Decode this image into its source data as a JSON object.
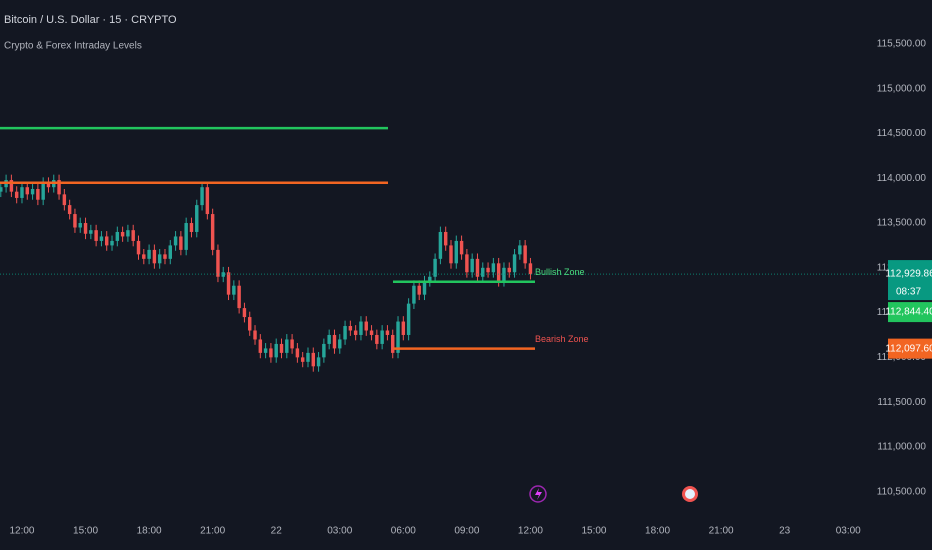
{
  "header": {
    "symbol": "Bitcoin / U.S. Dollar · 15 · CRYPTO",
    "indicator": "Crypto & Forex Intraday Levels"
  },
  "chart_data": {
    "type": "candlestick",
    "up_color": "#26a69a",
    "down_color": "#ef5350",
    "grid": false,
    "ylim": [
      110240,
      115990
    ],
    "xlim": [
      -0.15,
      166
    ],
    "yticks": [
      {
        "value": 110500,
        "label": "110,500.00"
      },
      {
        "value": 111000,
        "label": "111,000.00"
      },
      {
        "value": 111500,
        "label": "111,500.00"
      },
      {
        "value": 112000,
        "label": "112,000.00"
      },
      {
        "value": 112500,
        "label": "112,500.00"
      },
      {
        "value": 113000,
        "label": "113,000.00"
      },
      {
        "value": 113500,
        "label": "113,500.00"
      },
      {
        "value": 114000,
        "label": "114,000.00"
      },
      {
        "value": 114500,
        "label": "114,500.00"
      },
      {
        "value": 115000,
        "label": "115,000.00"
      },
      {
        "value": 115500,
        "label": "115,500.00"
      }
    ],
    "xticks": [
      {
        "value": 4,
        "label": "12:00"
      },
      {
        "value": 16,
        "label": "15:00"
      },
      {
        "value": 28,
        "label": "18:00"
      },
      {
        "value": 40,
        "label": "21:00"
      },
      {
        "value": 52,
        "label": "22"
      },
      {
        "value": 64,
        "label": "03:00"
      },
      {
        "value": 76,
        "label": "06:00"
      },
      {
        "value": 88,
        "label": "09:00"
      },
      {
        "value": 100,
        "label": "12:00"
      },
      {
        "value": 112,
        "label": "15:00"
      },
      {
        "value": 124,
        "label": "18:00"
      },
      {
        "value": 136,
        "label": "21:00"
      },
      {
        "value": 148,
        "label": "23"
      },
      {
        "value": 160,
        "label": "03:00"
      }
    ],
    "open": [
      113850,
      113900,
      113980,
      113850,
      113780,
      113900,
      113820,
      113880,
      113760,
      113950,
      113900,
      113980,
      113820,
      113700,
      113600,
      113450,
      113500,
      113380,
      113420,
      113300,
      113350,
      113250,
      113300,
      113400,
      113350,
      113420,
      113300,
      113150,
      113100,
      113200,
      113050,
      113150,
      113100,
      113250,
      113350,
      113200,
      113500,
      113400,
      113700,
      113900,
      113600,
      113200,
      112900,
      112950,
      112700,
      112800,
      112550,
      112450,
      112300,
      112200,
      112050,
      112100,
      112000,
      112150,
      112050,
      112200,
      112100,
      112000,
      111950,
      112050,
      111900,
      112000,
      112150,
      112250,
      112100,
      112200,
      112350,
      112300,
      112250,
      112400,
      112300,
      112250,
      112150,
      112300,
      112250,
      112050,
      112400,
      112250,
      112600,
      112800,
      112700,
      112850,
      112900,
      113100,
      113400,
      113250,
      113050,
      113300,
      113150,
      112950,
      113100,
      112900,
      113000,
      112950,
      113050,
      112850,
      113000,
      112950,
      113150,
      113250,
      113050
    ],
    "high": [
      113960,
      114040,
      114040,
      113910,
      113960,
      113960,
      113940,
      113940,
      114010,
      114010,
      114040,
      114040,
      113880,
      113760,
      113660,
      113560,
      113560,
      113480,
      113480,
      113410,
      113410,
      113360,
      113460,
      113460,
      113480,
      113480,
      113360,
      113210,
      113260,
      113260,
      113210,
      113210,
      113310,
      113410,
      113410,
      113560,
      113560,
      113760,
      113960,
      113960,
      113660,
      113260,
      113010,
      113010,
      112860,
      112860,
      112610,
      112510,
      112360,
      112260,
      112160,
      112160,
      112210,
      112210,
      112260,
      112260,
      112160,
      112060,
      112110,
      112110,
      112060,
      112210,
      112310,
      112310,
      112260,
      112410,
      112410,
      112360,
      112460,
      112460,
      112360,
      112310,
      112360,
      112360,
      112310,
      112460,
      112460,
      112660,
      112860,
      112860,
      112910,
      112960,
      113160,
      113460,
      113460,
      113310,
      113360,
      113360,
      113210,
      113160,
      113160,
      113060,
      113060,
      113110,
      113110,
      113060,
      113060,
      113210,
      113310,
      113310,
      113110
    ],
    "low": [
      113790,
      113840,
      113790,
      113720,
      113720,
      113760,
      113760,
      113700,
      113700,
      113840,
      113840,
      113760,
      113640,
      113540,
      113390,
      113390,
      113320,
      113320,
      113240,
      113240,
      113190,
      113190,
      113240,
      113290,
      113290,
      113240,
      113090,
      113040,
      113040,
      112990,
      112990,
      113040,
      113040,
      113190,
      113140,
      113140,
      113340,
      113340,
      113640,
      113540,
      113140,
      112840,
      112840,
      112640,
      112640,
      112490,
      112390,
      112240,
      112140,
      111990,
      111990,
      111940,
      111940,
      111990,
      111990,
      112040,
      111940,
      111890,
      111890,
      111840,
      111840,
      111940,
      112090,
      112040,
      112040,
      112140,
      112240,
      112190,
      112190,
      112240,
      112190,
      112090,
      112090,
      112190,
      111990,
      111990,
      112190,
      112190,
      112540,
      112640,
      112640,
      112790,
      112840,
      113040,
      113190,
      112990,
      112990,
      113090,
      112890,
      112890,
      112840,
      112840,
      112890,
      112890,
      112790,
      112790,
      112890,
      112890,
      113090,
      112990,
      112870
    ],
    "close": [
      113900,
      113980,
      113850,
      113780,
      113900,
      113820,
      113880,
      113760,
      113950,
      113900,
      113980,
      113820,
      113700,
      113600,
      113450,
      113500,
      113380,
      113420,
      113300,
      113350,
      113250,
      113300,
      113400,
      113350,
      113420,
      113300,
      113150,
      113100,
      113200,
      113050,
      113150,
      113100,
      113250,
      113350,
      113200,
      113500,
      113400,
      113700,
      113900,
      113600,
      113200,
      112900,
      112950,
      112700,
      112800,
      112550,
      112450,
      112300,
      112200,
      112050,
      112100,
      112000,
      112150,
      112050,
      112200,
      112100,
      112000,
      111950,
      112050,
      111900,
      112000,
      112150,
      112250,
      112100,
      112200,
      112350,
      112300,
      112250,
      112400,
      112300,
      112250,
      112150,
      112300,
      112250,
      112050,
      112400,
      112250,
      112600,
      112800,
      112700,
      112850,
      112900,
      113100,
      113400,
      113250,
      113050,
      113300,
      113150,
      112950,
      113100,
      112900,
      113000,
      112950,
      113050,
      112850,
      113000,
      112950,
      113150,
      113250,
      113050,
      112929.86
    ],
    "levels": [
      {
        "value": 114560,
        "color": "#22c55e"
      },
      {
        "value": 113950,
        "color": "#f26522"
      }
    ],
    "zones": [
      {
        "name": "Bullish Zone",
        "value": 112844.4,
        "label": "112,844.40",
        "color": "#22c55e",
        "text_color": "#4ade80"
      },
      {
        "name": "Bearish Zone",
        "value": 112097.6,
        "label": "112,097.60",
        "color": "#f26522",
        "text_color": "#ef5350"
      }
    ],
    "last_price": {
      "value": 112929.86,
      "label": "112,929.86",
      "countdown": "08:37",
      "color": "#089981"
    }
  }
}
